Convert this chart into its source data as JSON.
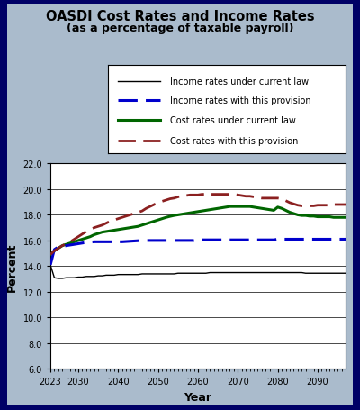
{
  "title": "OASDI Cost Rates and Income Rates",
  "subtitle": "(as a percentage of taxable payroll)",
  "xlabel": "Year",
  "ylabel": "Percent",
  "background_color": "#aabbcc",
  "plot_bg_color": "#ffffff",
  "border_color": "#000066",
  "ylim": [
    6.0,
    22.0
  ],
  "yticks": [
    6.0,
    8.0,
    10.0,
    12.0,
    14.0,
    16.0,
    18.0,
    20.0,
    22.0
  ],
  "xlim": [
    2023,
    2097
  ],
  "xticks": [
    2023,
    2030,
    2040,
    2050,
    2060,
    2070,
    2080,
    2090
  ],
  "years": [
    2023,
    2024,
    2025,
    2026,
    2027,
    2028,
    2029,
    2030,
    2031,
    2032,
    2033,
    2034,
    2035,
    2036,
    2037,
    2038,
    2039,
    2040,
    2041,
    2042,
    2043,
    2044,
    2045,
    2046,
    2047,
    2048,
    2049,
    2050,
    2051,
    2052,
    2053,
    2054,
    2055,
    2056,
    2057,
    2058,
    2059,
    2060,
    2061,
    2062,
    2063,
    2064,
    2065,
    2066,
    2067,
    2068,
    2069,
    2070,
    2071,
    2072,
    2073,
    2074,
    2075,
    2076,
    2077,
    2078,
    2079,
    2080,
    2081,
    2082,
    2083,
    2084,
    2085,
    2086,
    2087,
    2088,
    2089,
    2090,
    2091,
    2092,
    2093,
    2094,
    2095,
    2096,
    2097
  ],
  "income_current_law": [
    14.1,
    13.1,
    13.05,
    13.05,
    13.1,
    13.1,
    13.1,
    13.15,
    13.15,
    13.2,
    13.2,
    13.2,
    13.25,
    13.25,
    13.3,
    13.3,
    13.3,
    13.35,
    13.35,
    13.35,
    13.35,
    13.35,
    13.35,
    13.4,
    13.4,
    13.4,
    13.4,
    13.4,
    13.4,
    13.4,
    13.4,
    13.4,
    13.45,
    13.45,
    13.45,
    13.45,
    13.45,
    13.45,
    13.45,
    13.45,
    13.5,
    13.5,
    13.5,
    13.5,
    13.5,
    13.5,
    13.5,
    13.5,
    13.5,
    13.5,
    13.5,
    13.5,
    13.5,
    13.5,
    13.5,
    13.5,
    13.5,
    13.5,
    13.5,
    13.5,
    13.5,
    13.5,
    13.5,
    13.5,
    13.45,
    13.45,
    13.45,
    13.45,
    13.45,
    13.45,
    13.45,
    13.45,
    13.45,
    13.45,
    13.45
  ],
  "income_provision": [
    14.1,
    15.3,
    15.5,
    15.55,
    15.6,
    15.65,
    15.7,
    15.75,
    15.8,
    15.85,
    15.87,
    15.9,
    15.9,
    15.9,
    15.9,
    15.9,
    15.9,
    15.9,
    15.9,
    15.92,
    15.94,
    15.96,
    15.98,
    16.0,
    16.0,
    16.0,
    16.0,
    16.0,
    16.0,
    16.0,
    16.0,
    16.0,
    16.0,
    16.0,
    16.0,
    16.0,
    16.0,
    16.05,
    16.05,
    16.05,
    16.05,
    16.05,
    16.05,
    16.05,
    16.05,
    16.05,
    16.05,
    16.05,
    16.05,
    16.05,
    16.05,
    16.05,
    16.05,
    16.05,
    16.05,
    16.05,
    16.05,
    16.1,
    16.1,
    16.1,
    16.1,
    16.1,
    16.1,
    16.1,
    16.1,
    16.1,
    16.1,
    16.1,
    16.1,
    16.1,
    16.1,
    16.1,
    16.1,
    16.1,
    16.1
  ],
  "cost_current_law": [
    14.9,
    15.2,
    15.4,
    15.6,
    15.7,
    15.8,
    15.9,
    16.0,
    16.1,
    16.2,
    16.3,
    16.45,
    16.55,
    16.65,
    16.7,
    16.75,
    16.8,
    16.85,
    16.9,
    16.95,
    17.0,
    17.05,
    17.1,
    17.2,
    17.3,
    17.4,
    17.5,
    17.6,
    17.7,
    17.8,
    17.88,
    17.95,
    18.0,
    18.05,
    18.1,
    18.15,
    18.2,
    18.25,
    18.3,
    18.35,
    18.4,
    18.45,
    18.5,
    18.55,
    18.6,
    18.65,
    18.65,
    18.65,
    18.65,
    18.65,
    18.65,
    18.6,
    18.55,
    18.5,
    18.45,
    18.4,
    18.35,
    18.6,
    18.5,
    18.35,
    18.2,
    18.1,
    18.0,
    17.95,
    17.95,
    17.9,
    17.9,
    17.85,
    17.85,
    17.85,
    17.85,
    17.8,
    17.8,
    17.8,
    17.8
  ],
  "cost_provision": [
    14.9,
    15.2,
    15.4,
    15.6,
    15.75,
    15.9,
    16.1,
    16.3,
    16.5,
    16.7,
    16.85,
    17.0,
    17.1,
    17.2,
    17.35,
    17.5,
    17.6,
    17.7,
    17.8,
    17.9,
    18.0,
    18.1,
    18.2,
    18.3,
    18.5,
    18.65,
    18.8,
    18.95,
    19.05,
    19.15,
    19.25,
    19.3,
    19.4,
    19.45,
    19.5,
    19.55,
    19.55,
    19.55,
    19.6,
    19.6,
    19.6,
    19.6,
    19.6,
    19.6,
    19.6,
    19.6,
    19.6,
    19.55,
    19.5,
    19.45,
    19.45,
    19.4,
    19.35,
    19.3,
    19.3,
    19.3,
    19.3,
    19.3,
    19.25,
    19.1,
    18.95,
    18.85,
    18.75,
    18.7,
    18.7,
    18.7,
    18.7,
    18.75,
    18.75,
    18.75,
    18.75,
    18.8,
    18.8,
    18.8,
    18.8
  ],
  "income_current_law_color": "#000000",
  "income_provision_color": "#0000cc",
  "cost_current_law_color": "#006600",
  "cost_provision_color": "#8b2020",
  "legend_labels": [
    "Income rates under current law",
    "Income rates with this provision",
    "Cost rates under current law",
    "Cost rates with this provision"
  ]
}
